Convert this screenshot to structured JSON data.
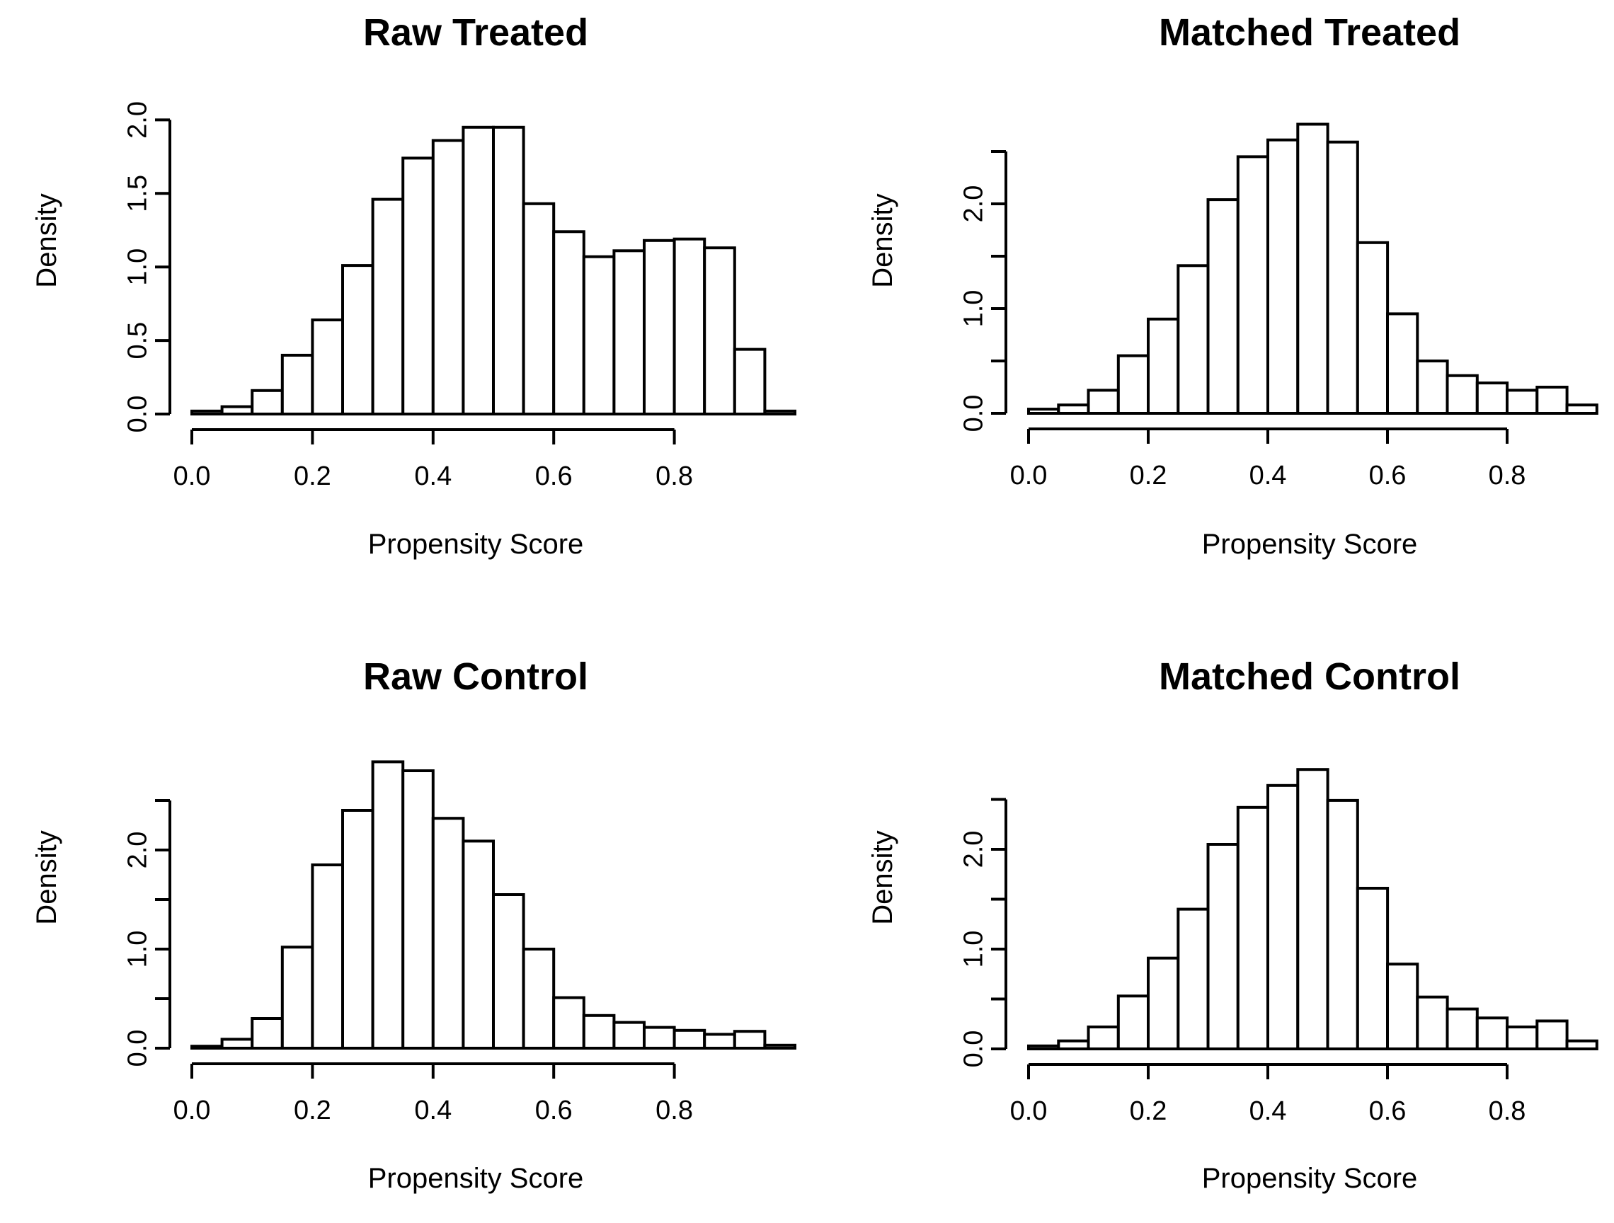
{
  "figure": {
    "background": "#ffffff",
    "line_color": "#000000",
    "bar_fill": "#ffffff",
    "panel_titles": [
      "Raw Treated",
      "Matched Treated",
      "Raw Control",
      "Matched Control"
    ]
  },
  "chart_data": [
    {
      "type": "bar",
      "title": "Raw Treated",
      "xlabel": "Propensity Score",
      "ylabel": "Density",
      "bin_start": 0.0,
      "bin_width": 0.05,
      "values": [
        0.02,
        0.05,
        0.16,
        0.4,
        0.64,
        1.01,
        1.46,
        1.74,
        1.86,
        1.95,
        1.95,
        1.43,
        1.24,
        1.07,
        1.11,
        1.18,
        1.19,
        1.13,
        0.44,
        0.02
      ],
      "x_ticks": [
        0.0,
        0.2,
        0.4,
        0.6,
        0.8
      ],
      "x_tick_labels": [
        "0.0",
        "0.2",
        "0.4",
        "0.6",
        "0.8"
      ],
      "y_ticks": [
        0,
        0.5,
        1,
        1.5,
        2
      ],
      "y_tick_labels": [
        "0.0",
        "0.5",
        "1.0",
        "1.5",
        "2.0"
      ],
      "xlim": [
        0,
        1.0
      ],
      "ylim": [
        0,
        2.0
      ],
      "grid": false
    },
    {
      "type": "bar",
      "title": "Matched Treated",
      "xlabel": "Propensity Score",
      "ylabel": "Density",
      "bin_start": 0.0,
      "bin_width": 0.05,
      "values": [
        0.04,
        0.08,
        0.22,
        0.55,
        0.9,
        1.41,
        2.04,
        2.45,
        2.61,
        2.76,
        2.59,
        1.63,
        0.95,
        0.5,
        0.36,
        0.29,
        0.22,
        0.25,
        0.08
      ],
      "x_ticks": [
        0.0,
        0.2,
        0.4,
        0.6,
        0.8
      ],
      "x_tick_labels": [
        "0.0",
        "0.2",
        "0.4",
        "0.6",
        "0.8"
      ],
      "y_ticks": [
        0,
        0.5,
        1,
        1.5,
        2,
        2.5
      ],
      "y_tick_labels": [
        "0.0",
        "",
        "1.0",
        "",
        "2.0",
        ""
      ],
      "xlim": [
        0,
        0.95
      ],
      "ylim": [
        0,
        2.5
      ],
      "grid": false
    },
    {
      "type": "bar",
      "title": "Raw Control",
      "xlabel": "Propensity Score",
      "ylabel": "Density",
      "bin_start": 0.0,
      "bin_width": 0.05,
      "values": [
        0.02,
        0.09,
        0.3,
        1.02,
        1.85,
        2.4,
        2.89,
        2.8,
        2.32,
        2.09,
        1.55,
        1.0,
        0.51,
        0.33,
        0.26,
        0.21,
        0.18,
        0.14,
        0.17,
        0.03
      ],
      "x_ticks": [
        0.0,
        0.2,
        0.4,
        0.6,
        0.8
      ],
      "x_tick_labels": [
        "0.0",
        "0.2",
        "0.4",
        "0.6",
        "0.8"
      ],
      "y_ticks": [
        0,
        0.5,
        1,
        1.5,
        2,
        2.5
      ],
      "y_tick_labels": [
        "0.0",
        "",
        "1.0",
        "",
        "2.0",
        ""
      ],
      "xlim": [
        0,
        1.0
      ],
      "ylim": [
        0,
        2.5
      ],
      "grid": false
    },
    {
      "type": "bar",
      "title": "Matched Control",
      "xlabel": "Propensity Score",
      "ylabel": "Density",
      "bin_start": 0.0,
      "bin_width": 0.05,
      "values": [
        0.03,
        0.08,
        0.22,
        0.53,
        0.91,
        1.4,
        2.05,
        2.42,
        2.64,
        2.8,
        2.49,
        1.61,
        0.85,
        0.52,
        0.4,
        0.31,
        0.22,
        0.28,
        0.08
      ],
      "x_ticks": [
        0.0,
        0.2,
        0.4,
        0.6,
        0.8
      ],
      "x_tick_labels": [
        "0.0",
        "0.2",
        "0.4",
        "0.6",
        "0.8"
      ],
      "y_ticks": [
        0,
        0.5,
        1,
        1.5,
        2,
        2.5
      ],
      "y_tick_labels": [
        "0.0",
        "",
        "1.0",
        "",
        "2.0",
        ""
      ],
      "xlim": [
        0,
        0.95
      ],
      "ylim": [
        0,
        2.5
      ],
      "grid": false
    }
  ]
}
